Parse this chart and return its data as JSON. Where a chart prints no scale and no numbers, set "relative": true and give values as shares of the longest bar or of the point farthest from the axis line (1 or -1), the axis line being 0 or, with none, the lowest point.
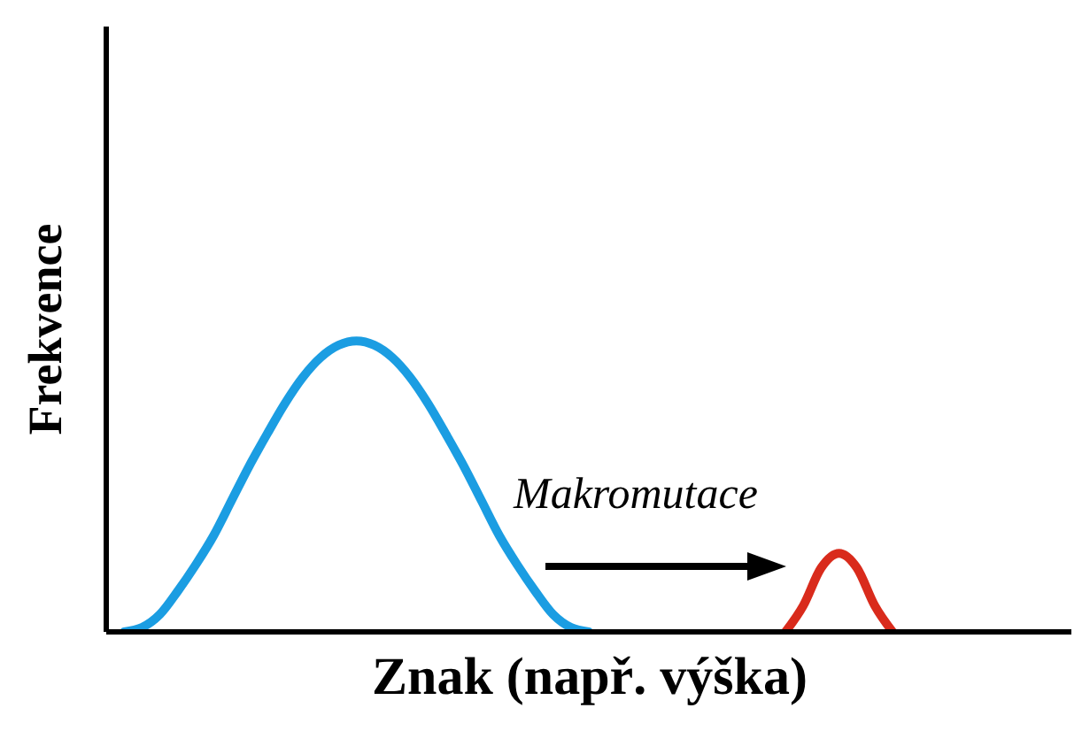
{
  "chart_data": {
    "type": "line",
    "relative": true,
    "xlabel": "Znak (např. výška)",
    "ylabel": "Frekvence",
    "annotations": [
      "Makromutace"
    ],
    "marker": "none",
    "categories": [
      null,
      null,
      null,
      null,
      null,
      null,
      null,
      null,
      null,
      null,
      null,
      null,
      null,
      null,
      null,
      null,
      null,
      null,
      null,
      null,
      null,
      null,
      null,
      null,
      null,
      null,
      null,
      null,
      null,
      null,
      null,
      null,
      null,
      null,
      null,
      null,
      null,
      null,
      null,
      null,
      null,
      null,
      null,
      null,
      null,
      null,
      null,
      null,
      null,
      null,
      null,
      null,
      null,
      null,
      null
    ],
    "series": [
      {
        "color": "#1b9de2",
        "values": [
          null,
          0,
          0.015,
          0.06,
          0.14,
          0.23,
          0.33,
          0.45,
          0.57,
          0.68,
          0.785,
          0.875,
          0.943,
          0.985,
          1,
          0.985,
          0.943,
          0.875,
          0.785,
          0.68,
          0.57,
          0.45,
          0.33,
          0.23,
          0.14,
          0.06,
          0.015,
          0,
          null,
          null,
          null,
          null,
          null,
          null,
          null,
          null,
          null,
          null,
          null,
          null,
          null,
          null,
          null,
          null,
          null,
          null,
          null,
          null,
          null,
          null,
          null,
          null,
          null,
          null,
          null
        ]
      },
      {
        "color": "#d92b1c",
        "values": [
          null,
          null,
          null,
          null,
          null,
          null,
          null,
          null,
          null,
          null,
          null,
          null,
          null,
          null,
          null,
          null,
          null,
          null,
          null,
          null,
          null,
          null,
          null,
          null,
          null,
          null,
          null,
          null,
          null,
          null,
          null,
          null,
          null,
          null,
          null,
          null,
          null,
          null,
          0,
          0.09,
          0.22,
          0.27,
          0.22,
          0.09,
          0,
          null,
          null,
          null,
          null,
          null,
          null,
          null,
          null,
          null,
          null
        ]
      }
    ]
  }
}
